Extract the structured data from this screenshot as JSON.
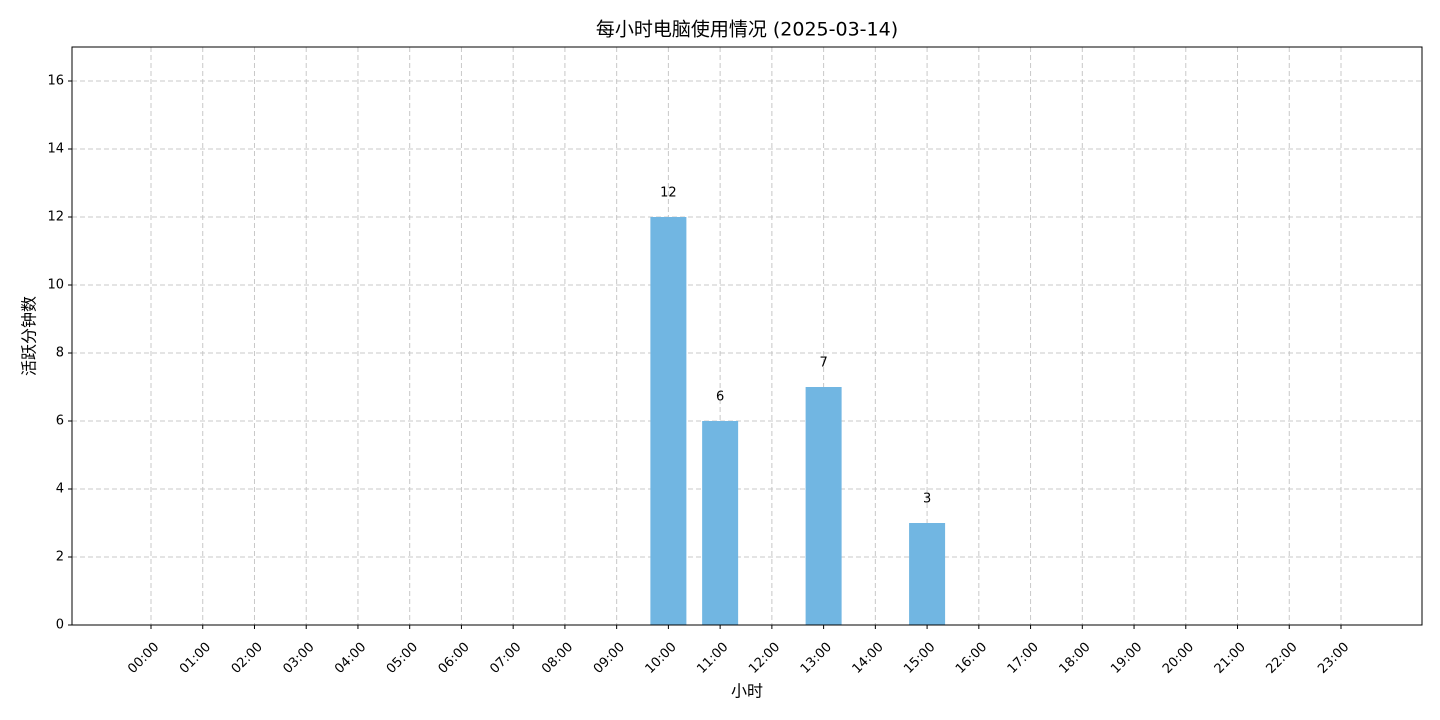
{
  "chart_data": {
    "type": "bar",
    "title": "每小时电脑使用情况 (2025-03-14)",
    "x_label": "小时",
    "y_label": "活跃分钟数",
    "categories": [
      "00:00",
      "01:00",
      "02:00",
      "03:00",
      "04:00",
      "05:00",
      "06:00",
      "07:00",
      "08:00",
      "09:00",
      "10:00",
      "11:00",
      "12:00",
      "13:00",
      "14:00",
      "15:00",
      "16:00",
      "17:00",
      "18:00",
      "19:00",
      "20:00",
      "21:00",
      "22:00",
      "23:00"
    ],
    "values": [
      0,
      0,
      0,
      0,
      0,
      0,
      0,
      0,
      0,
      0,
      12,
      6,
      0,
      7,
      0,
      3,
      0,
      0,
      0,
      0,
      0,
      0,
      0,
      0
    ],
    "color": "#71b6e2",
    "ylim": [
      0,
      17
    ],
    "yticks": [
      0,
      2,
      4,
      6,
      8,
      10,
      12,
      14,
      16
    ],
    "grid": true
  }
}
